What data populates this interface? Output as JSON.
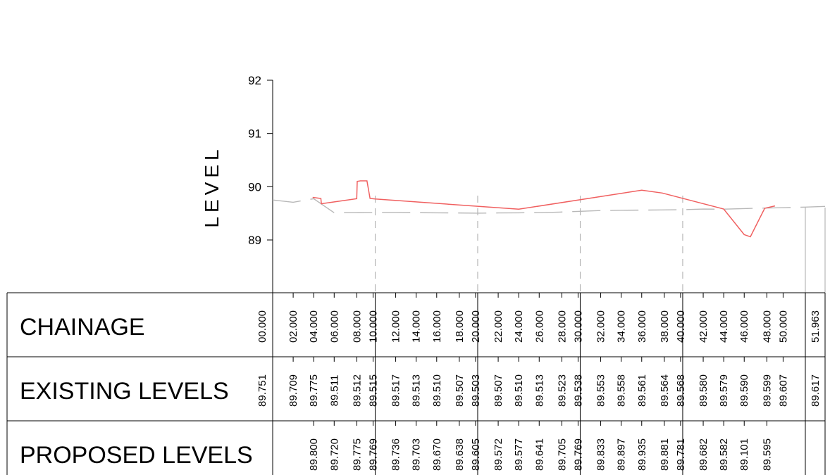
{
  "chart_data": {
    "type": "line",
    "ylabel": "LEVEL",
    "ylim": [
      88,
      92
    ],
    "xlim": [
      0,
      51.963
    ],
    "yticks": [
      "89",
      "90",
      "91",
      "92"
    ],
    "colors": {
      "existing": "#b8b8b8",
      "proposed": "#f06060",
      "grid": "#aaaaaa"
    },
    "series": [
      {
        "key": "existing",
        "x": [
          0,
          2,
          4,
          6,
          8,
          10,
          12,
          14,
          16,
          18,
          20,
          22,
          24,
          26,
          28,
          30,
          32,
          34,
          36,
          38,
          40,
          42,
          44,
          46,
          48,
          50,
          51.963
        ],
        "values": [
          89.751,
          89.709,
          89.775,
          89.511,
          89.512,
          89.515,
          89.517,
          89.513,
          89.51,
          89.507,
          89.503,
          89.507,
          89.51,
          89.513,
          89.523,
          89.538,
          89.553,
          89.558,
          89.561,
          89.564,
          89.568,
          89.58,
          89.579,
          89.59,
          89.599,
          89.607,
          89.617
        ]
      },
      {
        "key": "proposed",
        "x": [
          3.9,
          4.7,
          4.75,
          8.2,
          8.25,
          8.55,
          9.2,
          9.5,
          10.0,
          24.0,
          36.0,
          38.0,
          44.0,
          46.0,
          46.6,
          48.0,
          49.0
        ],
        "values": [
          89.8,
          89.78,
          89.68,
          89.775,
          90.1,
          90.11,
          90.11,
          89.78,
          89.769,
          89.577,
          89.935,
          89.881,
          89.582,
          89.101,
          89.06,
          89.595,
          89.64
        ]
      }
    ],
    "table": {
      "sections": [
        {
          "label": "CHAINAGE",
          "key": "chainage"
        },
        {
          "label": "EXISTING LEVELS",
          "key": "existing"
        },
        {
          "label": "PROPOSED LEVELS",
          "key": "proposed"
        }
      ],
      "columns": [
        {
          "x": 0,
          "chainage": "00.000",
          "existing": "89.751",
          "proposed": ""
        },
        {
          "x": 2,
          "chainage": "02.000",
          "existing": "89.709",
          "proposed": ""
        },
        {
          "x": 4,
          "chainage": "04.000",
          "existing": "89.775",
          "proposed": "89.800"
        },
        {
          "x": 6,
          "chainage": "06.000",
          "existing": "89.511",
          "proposed": "89.720"
        },
        {
          "x": 8,
          "chainage": "08.000",
          "existing": "89.512",
          "proposed": "89.775"
        },
        {
          "x": 10,
          "chainage": "10.000",
          "existing": "89.515",
          "proposed": "89.769"
        },
        {
          "x": 12,
          "chainage": "12.000",
          "existing": "89.517",
          "proposed": "89.736"
        },
        {
          "x": 14,
          "chainage": "14.000",
          "existing": "89.513",
          "proposed": "89.703"
        },
        {
          "x": 16,
          "chainage": "16.000",
          "existing": "89.510",
          "proposed": "89.670"
        },
        {
          "x": 18,
          "chainage": "18.000",
          "existing": "89.507",
          "proposed": "89.638"
        },
        {
          "x": 20,
          "chainage": "20.000",
          "existing": "89.503",
          "proposed": "89.605"
        },
        {
          "x": 22,
          "chainage": "22.000",
          "existing": "89.507",
          "proposed": "89.572"
        },
        {
          "x": 24,
          "chainage": "24.000",
          "existing": "89.510",
          "proposed": "89.577"
        },
        {
          "x": 26,
          "chainage": "26.000",
          "existing": "89.513",
          "proposed": "89.641"
        },
        {
          "x": 28,
          "chainage": "28.000",
          "existing": "89.523",
          "proposed": "89.705"
        },
        {
          "x": 30,
          "chainage": "30.000",
          "existing": "89.538",
          "proposed": "89.769"
        },
        {
          "x": 32,
          "chainage": "32.000",
          "existing": "89.553",
          "proposed": "89.833"
        },
        {
          "x": 34,
          "chainage": "34.000",
          "existing": "89.558",
          "proposed": "89.897"
        },
        {
          "x": 36,
          "chainage": "36.000",
          "existing": "89.561",
          "proposed": "89.935"
        },
        {
          "x": 38,
          "chainage": "38.000",
          "existing": "89.564",
          "proposed": "89.881"
        },
        {
          "x": 40,
          "chainage": "40.000",
          "existing": "89.568",
          "proposed": "89.781"
        },
        {
          "x": 42,
          "chainage": "42.000",
          "existing": "89.580",
          "proposed": "89.682"
        },
        {
          "x": 44,
          "chainage": "44.000",
          "existing": "89.579",
          "proposed": "89.582"
        },
        {
          "x": 46,
          "chainage": "46.000",
          "existing": "89.590",
          "proposed": "89.101"
        },
        {
          "x": 48,
          "chainage": "48.000",
          "existing": "89.599",
          "proposed": "89.595"
        },
        {
          "x": 50,
          "chainage": "50.000",
          "existing": "89.607",
          "proposed": ""
        },
        {
          "x": 51.963,
          "chainage": "51.963",
          "existing": "89.617",
          "proposed": ""
        }
      ]
    }
  }
}
